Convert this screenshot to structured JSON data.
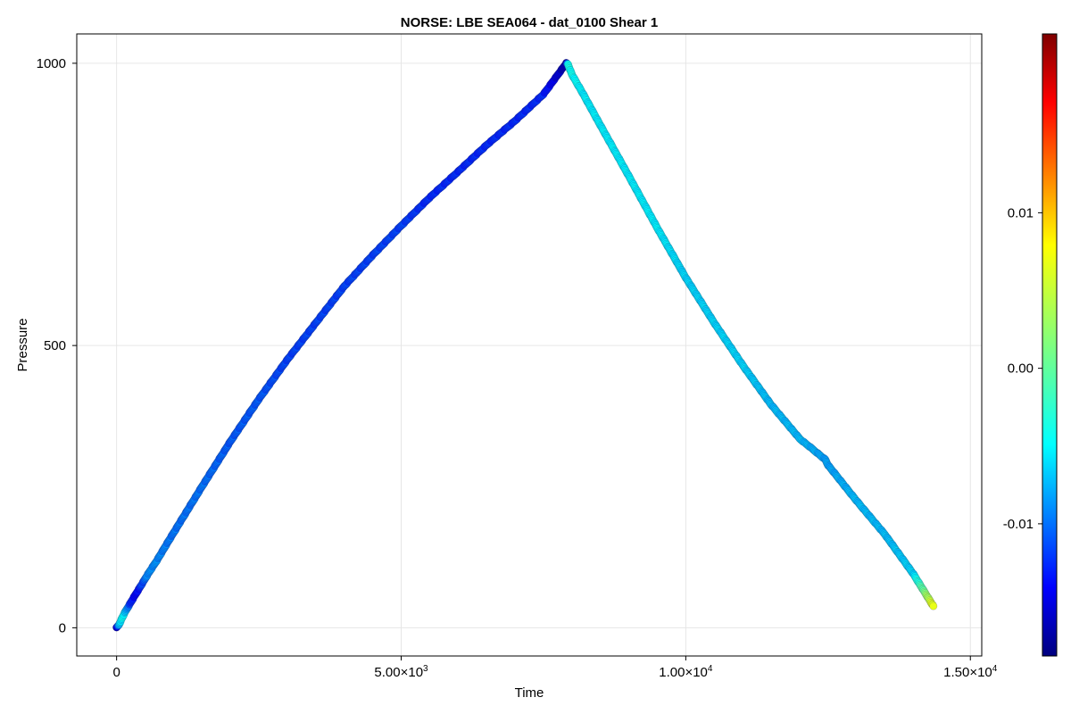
{
  "chart_data": {
    "type": "scatter",
    "title": "NORSE: LBE SEA064 - dat_0100 Shear 1",
    "xlabel": "Time",
    "ylabel": "Pressure",
    "xlim": [
      -700,
      15200
    ],
    "ylim": [
      -50,
      1052
    ],
    "xticks": [
      {
        "value": 0,
        "mantissa": "0",
        "exp": ""
      },
      {
        "value": 5000,
        "mantissa": "5.00×10",
        "exp": "3"
      },
      {
        "value": 10000,
        "mantissa": "1.00×10",
        "exp": "4"
      },
      {
        "value": 15000,
        "mantissa": "1.50×10",
        "exp": "4"
      }
    ],
    "yticks": [
      {
        "value": 0,
        "label": "0"
      },
      {
        "value": 500,
        "label": "500"
      },
      {
        "value": 1000,
        "label": "1000"
      }
    ],
    "grid": true,
    "colorbar": {
      "colormap": "jet",
      "range": [
        -0.0185,
        0.0215
      ],
      "ticks": [
        {
          "value": 0.01,
          "label": "0.01"
        },
        {
          "value": 0.0,
          "label": "0.00"
        },
        {
          "value": -0.01,
          "label": "-0.01"
        }
      ]
    },
    "series": [
      {
        "x": [
          0,
          40,
          100,
          150,
          250,
          350,
          450,
          550,
          700,
          1000,
          1500,
          2000,
          2500,
          3000,
          3500,
          4000,
          4500,
          5000,
          5500,
          6000,
          6500,
          7000,
          7500,
          7900,
          7930,
          8000,
          8200,
          8500,
          9000,
          9500,
          10000,
          10500,
          11000,
          11500,
          12000,
          12450,
          12500,
          13000,
          13500,
          14000,
          14350
        ],
        "y": [
          0,
          5,
          18,
          28,
          45,
          62,
          78,
          95,
          118,
          168,
          250,
          330,
          405,
          475,
          540,
          605,
          660,
          712,
          762,
          808,
          855,
          898,
          945,
          1000,
          998,
          980,
          945,
          890,
          800,
          708,
          620,
          540,
          465,
          395,
          335,
          298,
          288,
          225,
          165,
          95,
          38
        ],
        "c": [
          -0.016,
          -0.007,
          -0.003,
          -0.005,
          -0.012,
          -0.014,
          -0.011,
          -0.008,
          -0.008,
          -0.009,
          -0.009,
          -0.01,
          -0.01,
          -0.011,
          -0.011,
          -0.011,
          -0.011,
          -0.011,
          -0.012,
          -0.012,
          -0.012,
          -0.012,
          -0.012,
          -0.017,
          -0.003,
          -0.003,
          -0.004,
          -0.004,
          -0.004,
          -0.004,
          -0.005,
          -0.005,
          -0.005,
          -0.006,
          -0.006,
          -0.007,
          -0.007,
          -0.006,
          -0.006,
          -0.005,
          0.006
        ]
      }
    ]
  }
}
